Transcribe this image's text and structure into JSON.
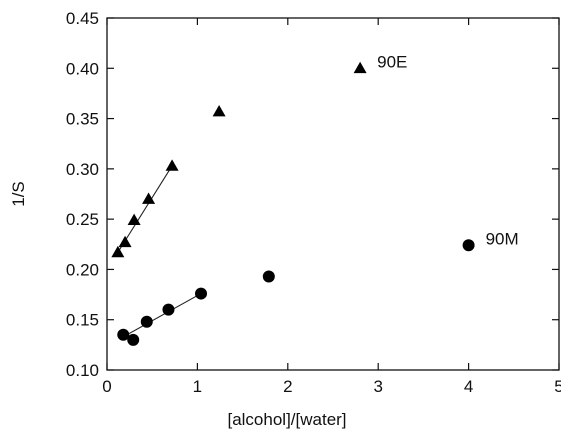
{
  "chart_data": {
    "type": "scatter",
    "title": "",
    "xlabel": "[alcohol]/[water]",
    "ylabel": "1/S",
    "xlim": [
      0,
      5
    ],
    "ylim": [
      0.1,
      0.45
    ],
    "x_ticks": [
      0,
      1,
      2,
      3,
      4,
      5
    ],
    "x_tick_labels": [
      "0",
      "1",
      "2",
      "3",
      "4",
      "5"
    ],
    "y_ticks": [
      0.1,
      0.15,
      0.2,
      0.25,
      0.3,
      0.35,
      0.4,
      0.45
    ],
    "y_tick_labels": [
      "0.10",
      "0.15",
      "0.20",
      "0.25",
      "0.30",
      "0.35",
      "0.40",
      "0.45"
    ],
    "grid": false,
    "series": [
      {
        "name": "90E",
        "marker": "triangle",
        "color": "#000000",
        "points": [
          {
            "x": 0.12,
            "y": 0.217
          },
          {
            "x": 0.2,
            "y": 0.227
          },
          {
            "x": 0.3,
            "y": 0.249
          },
          {
            "x": 0.46,
            "y": 0.27
          },
          {
            "x": 0.72,
            "y": 0.303
          },
          {
            "x": 1.24,
            "y": 0.357
          },
          {
            "x": 2.8,
            "y": 0.4
          }
        ],
        "fit_line": {
          "x": [
            0.12,
            0.72
          ],
          "y": [
            0.217,
            0.303
          ]
        },
        "label_anchor": {
          "x": 2.8,
          "y": 0.4
        }
      },
      {
        "name": "90M",
        "marker": "circle",
        "color": "#000000",
        "points": [
          {
            "x": 0.18,
            "y": 0.135
          },
          {
            "x": 0.29,
            "y": 0.13
          },
          {
            "x": 0.44,
            "y": 0.148
          },
          {
            "x": 0.68,
            "y": 0.16
          },
          {
            "x": 1.04,
            "y": 0.176
          },
          {
            "x": 1.79,
            "y": 0.193
          },
          {
            "x": 4.0,
            "y": 0.224
          }
        ],
        "fit_line": {
          "x": [
            0.18,
            1.04
          ],
          "y": [
            0.133,
            0.176
          ]
        },
        "label_anchor": {
          "x": 4.0,
          "y": 0.224
        }
      }
    ]
  }
}
